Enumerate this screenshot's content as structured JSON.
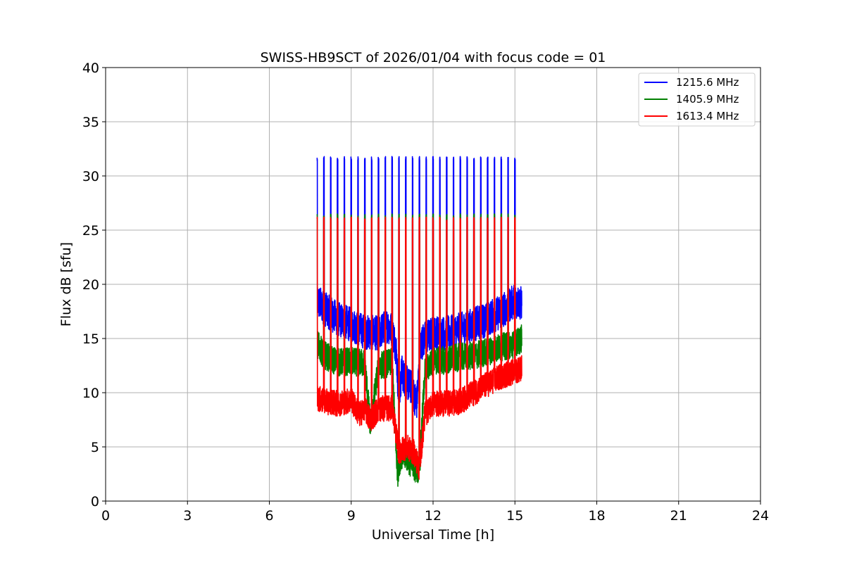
{
  "chart_data": {
    "type": "line",
    "title": "SWISS-HB9SCT of 2026/01/04 with focus code = 01",
    "xlabel": "Universal Time [h]",
    "ylabel": "Flux dB [sfu]",
    "xlim": [
      0,
      24
    ],
    "ylim": [
      0,
      40
    ],
    "xticks": [
      "0",
      "3",
      "6",
      "9",
      "12",
      "15",
      "18",
      "21",
      "24"
    ],
    "yticks": [
      "0",
      "5",
      "10",
      "15",
      "20",
      "25",
      "30",
      "35",
      "40"
    ],
    "grid": true,
    "legend_position": "top-right",
    "calibration_spikes": {
      "x": [
        7.75,
        8.0,
        8.25,
        8.5,
        8.75,
        9.0,
        9.25,
        9.5,
        9.75,
        10.0,
        10.25,
        10.5,
        10.75,
        11.0,
        11.25,
        11.5,
        11.75,
        12.0,
        12.25,
        12.5,
        12.75,
        13.0,
        13.25,
        13.5,
        13.75,
        14.0,
        14.25,
        14.5,
        14.75,
        15.0
      ],
      "peak_1215": 31.8,
      "peak_1405": 26.5,
      "peak_1613": 26.2
    },
    "series": [
      {
        "name": "1215.6 MHz",
        "color": "#0000ff",
        "noise": 1.6,
        "x": [
          7.75,
          8.0,
          8.5,
          9.0,
          9.5,
          10.0,
          10.3,
          10.5,
          10.65,
          10.75,
          10.85,
          11.0,
          11.2,
          11.4,
          11.55,
          11.7,
          12.0,
          12.5,
          13.0,
          13.5,
          14.0,
          14.5,
          15.0,
          15.25
        ],
        "y": [
          18.5,
          17.8,
          16.8,
          16.3,
          15.6,
          15.5,
          16.2,
          15.8,
          14.0,
          9.0,
          12.0,
          11.0,
          10.5,
          9.0,
          14.5,
          15.0,
          15.5,
          15.5,
          15.8,
          16.3,
          16.8,
          17.5,
          18.5,
          18.2
        ]
      },
      {
        "name": "1405.9 MHz",
        "color": "#008000",
        "noise": 1.3,
        "x": [
          7.75,
          8.0,
          8.5,
          9.0,
          9.5,
          9.7,
          10.0,
          10.5,
          10.7,
          10.8,
          11.0,
          11.3,
          11.5,
          11.7,
          12.0,
          12.5,
          13.0,
          13.5,
          14.0,
          14.5,
          15.0,
          15.25
        ],
        "y": [
          14.5,
          13.5,
          12.8,
          12.9,
          12.7,
          7.0,
          12.5,
          12.8,
          2.5,
          4.0,
          4.2,
          3.0,
          3.0,
          12.0,
          12.9,
          13.0,
          13.3,
          13.4,
          13.8,
          14.2,
          14.5,
          15.0
        ]
      },
      {
        "name": "1613.4 MHz",
        "color": "#ff0000",
        "noise": 1.2,
        "x": [
          7.75,
          8.0,
          8.5,
          9.0,
          9.3,
          9.5,
          9.7,
          10.0,
          10.5,
          10.75,
          11.0,
          11.3,
          11.5,
          11.7,
          12.0,
          12.5,
          13.0,
          13.5,
          14.0,
          14.5,
          15.0,
          15.25
        ],
        "y": [
          9.5,
          9.2,
          9.0,
          9.3,
          8.0,
          8.5,
          7.5,
          8.5,
          8.6,
          4.5,
          5.0,
          4.5,
          3.0,
          8.0,
          9.0,
          9.0,
          9.2,
          10.0,
          10.8,
          11.5,
          12.0,
          12.3
        ]
      }
    ]
  }
}
